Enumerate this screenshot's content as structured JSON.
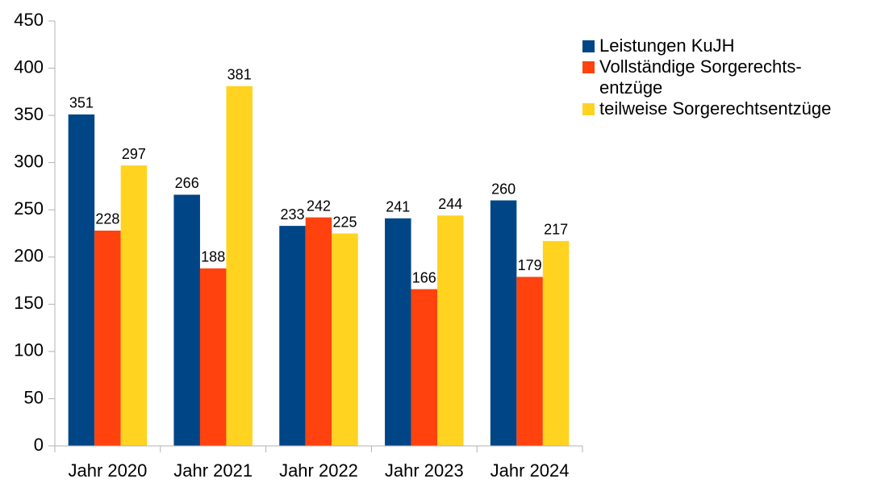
{
  "chart_data": {
    "type": "bar",
    "categories": [
      "Jahr 2020",
      "Jahr 2021",
      "Jahr 2022",
      "Jahr 2023",
      "Jahr 2024"
    ],
    "series": [
      {
        "name": "Leistungen KuJH",
        "color": "#004586",
        "values": [
          351,
          266,
          233,
          241,
          260
        ]
      },
      {
        "name": "Vollständige Sorgerechts-\nentzüge",
        "color": "#ff420e",
        "values": [
          228,
          188,
          242,
          166,
          179
        ]
      },
      {
        "name": "teilweise Sorgerechtsentzüge",
        "color": "#ffd320",
        "values": [
          297,
          381,
          225,
          244,
          217
        ]
      }
    ],
    "ylim": [
      0,
      450
    ],
    "yticks": [
      0,
      50,
      100,
      150,
      200,
      250,
      300,
      350,
      400,
      450
    ],
    "grid": false,
    "legend": "right"
  }
}
